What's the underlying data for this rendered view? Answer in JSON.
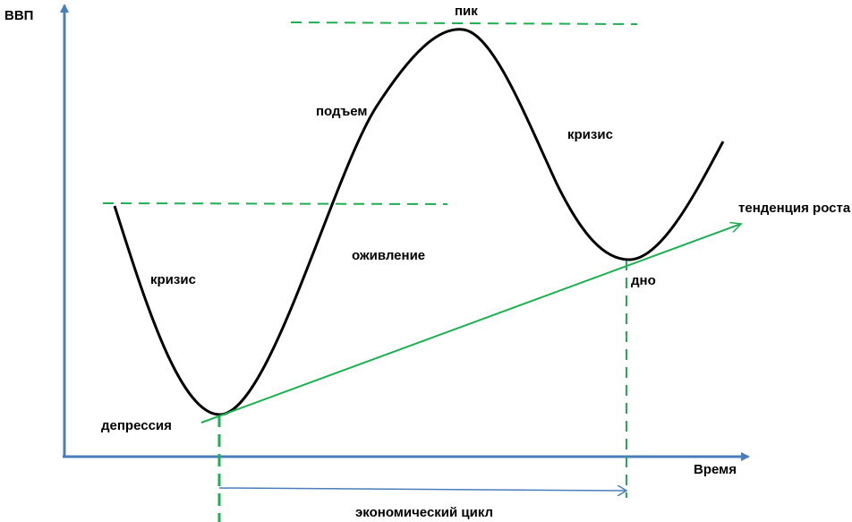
{
  "axes": {
    "y_label": "ВВП",
    "x_label": "Время"
  },
  "phases": {
    "peak": "пик",
    "rise": "подъем",
    "crisis_right": "кризис",
    "trend": "тенденция роста",
    "recovery": "оживление",
    "crisis_left": "кризис",
    "bottom": "дно",
    "depression": "депрессия"
  },
  "cycle_label": "экономический цикл"
}
